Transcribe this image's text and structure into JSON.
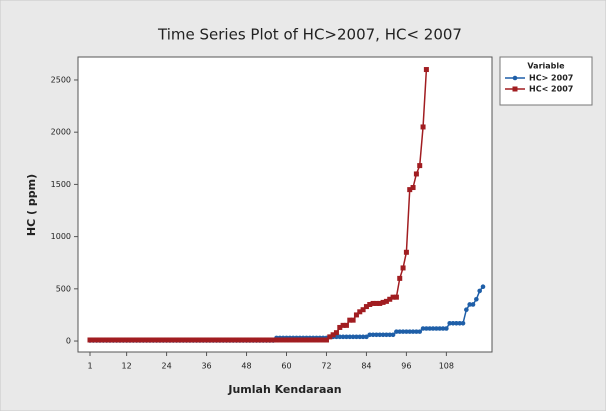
{
  "chart_data": {
    "type": "line",
    "title": "Time Series Plot of HC>2007, HC< 2007",
    "xlabel": "Jumlah Kendaraan",
    "ylabel": "HC ( ppm)",
    "legend_title": "Variable",
    "legend": "right",
    "x": [
      1,
      2,
      3,
      4,
      5,
      6,
      7,
      8,
      9,
      10,
      11,
      12,
      13,
      14,
      15,
      16,
      17,
      18,
      19,
      20,
      21,
      22,
      23,
      24,
      25,
      26,
      27,
      28,
      29,
      30,
      31,
      32,
      33,
      34,
      35,
      36,
      37,
      38,
      39,
      40,
      41,
      42,
      43,
      44,
      45,
      46,
      47,
      48,
      49,
      50,
      51,
      52,
      53,
      54,
      55,
      56,
      57,
      58,
      59,
      60,
      61,
      62,
      63,
      64,
      65,
      66,
      67,
      68,
      69,
      70,
      71,
      72,
      73,
      74,
      75,
      76,
      77,
      78,
      79,
      80,
      81,
      82,
      83,
      84,
      85,
      86,
      87,
      88,
      89,
      90,
      91,
      92,
      93,
      94,
      95,
      96,
      97,
      98,
      99,
      100,
      101,
      102,
      103,
      104,
      105,
      106,
      107,
      108,
      109,
      110,
      111,
      112,
      113,
      114,
      115,
      116,
      117,
      118,
      119
    ],
    "series": [
      {
        "name": "HC> 2007",
        "color": "#1f5fa8",
        "marker": "circle",
        "values": [
          5,
          5,
          5,
          5,
          5,
          5,
          5,
          5,
          5,
          5,
          5,
          5,
          5,
          5,
          5,
          5,
          5,
          5,
          5,
          5,
          5,
          5,
          5,
          5,
          5,
          5,
          5,
          5,
          5,
          5,
          5,
          5,
          5,
          5,
          5,
          5,
          5,
          5,
          5,
          5,
          5,
          5,
          5,
          5,
          5,
          5,
          5,
          5,
          5,
          5,
          5,
          5,
          5,
          5,
          5,
          5,
          30,
          30,
          30,
          30,
          30,
          30,
          30,
          30,
          30,
          30,
          30,
          30,
          30,
          30,
          30,
          30,
          40,
          40,
          40,
          40,
          40,
          40,
          40,
          40,
          40,
          40,
          40,
          40,
          60,
          60,
          60,
          60,
          60,
          60,
          60,
          60,
          90,
          90,
          90,
          90,
          90,
          90,
          90,
          90,
          120,
          120,
          120,
          120,
          120,
          120,
          120,
          120,
          170,
          170,
          170,
          170,
          170,
          300,
          350,
          350,
          400,
          480,
          520
        ]
      },
      {
        "name": "HC< 2007",
        "color": "#a11d21",
        "marker": "square",
        "values": [
          10,
          10,
          10,
          10,
          10,
          10,
          10,
          10,
          10,
          10,
          10,
          10,
          10,
          10,
          10,
          10,
          10,
          10,
          10,
          10,
          10,
          10,
          10,
          10,
          10,
          10,
          10,
          10,
          10,
          10,
          10,
          10,
          10,
          10,
          10,
          10,
          10,
          10,
          10,
          10,
          10,
          10,
          10,
          10,
          10,
          10,
          10,
          10,
          10,
          10,
          10,
          10,
          10,
          10,
          10,
          10,
          10,
          10,
          10,
          10,
          10,
          10,
          10,
          10,
          10,
          10,
          10,
          10,
          10,
          10,
          10,
          10,
          40,
          60,
          80,
          130,
          150,
          150,
          200,
          200,
          250,
          280,
          300,
          330,
          350,
          360,
          360,
          360,
          370,
          380,
          400,
          420,
          420,
          600,
          700,
          850,
          1450,
          1470,
          1600,
          1680,
          2050,
          2600,
          null,
          null,
          null,
          null,
          null,
          null,
          null,
          null,
          null,
          null,
          null,
          null,
          null,
          null,
          null,
          null,
          null
        ]
      }
    ],
    "xlim": [
      -2.6,
      121.7
    ],
    "xticks": [
      1,
      12,
      24,
      36,
      48,
      60,
      72,
      84,
      96,
      108
    ],
    "ylim": [
      -105,
      2720
    ],
    "yticks": [
      0,
      500,
      1000,
      1500,
      2000,
      2500
    ]
  }
}
